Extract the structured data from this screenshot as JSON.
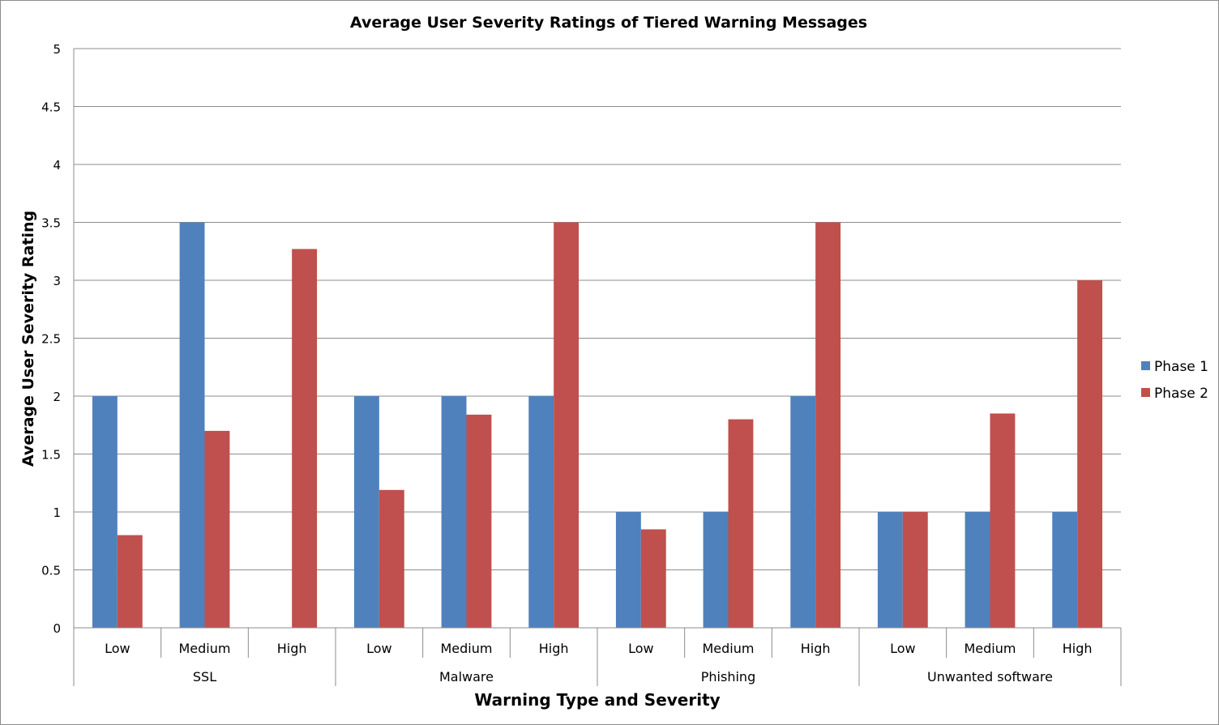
{
  "chart_data": {
    "type": "bar",
    "title": "Average User Severity Ratings of Tiered Warning Messages",
    "xlabel": "Warning Type and Severity",
    "ylabel": "Average User Severity Rating",
    "ylim": [
      0,
      5
    ],
    "yticks": [
      "0",
      "0.5",
      "1",
      "1.5",
      "2",
      "2.5",
      "3",
      "3.5",
      "4",
      "4.5",
      "5"
    ],
    "grid": true,
    "legend_position": "right",
    "groups": [
      {
        "name": "SSL",
        "categories": [
          "Low",
          "Medium",
          "High"
        ]
      },
      {
        "name": "Malware",
        "categories": [
          "Low",
          "Medium",
          "High"
        ]
      },
      {
        "name": "Phishing",
        "categories": [
          "Low",
          "Medium",
          "High"
        ]
      },
      {
        "name": "Unwanted software",
        "categories": [
          "Low",
          "Medium",
          "High"
        ]
      }
    ],
    "series": [
      {
        "name": "Phase 1",
        "color": "#4f81bd",
        "values": [
          2,
          3.5,
          0,
          2,
          2,
          2,
          1,
          1,
          2,
          1,
          1,
          1
        ]
      },
      {
        "name": "Phase 2",
        "color": "#c0504d",
        "values": [
          0.8,
          1.7,
          3.27,
          1.19,
          1.84,
          3.5,
          0.85,
          1.8,
          3.5,
          1,
          1.85,
          3
        ]
      }
    ]
  }
}
